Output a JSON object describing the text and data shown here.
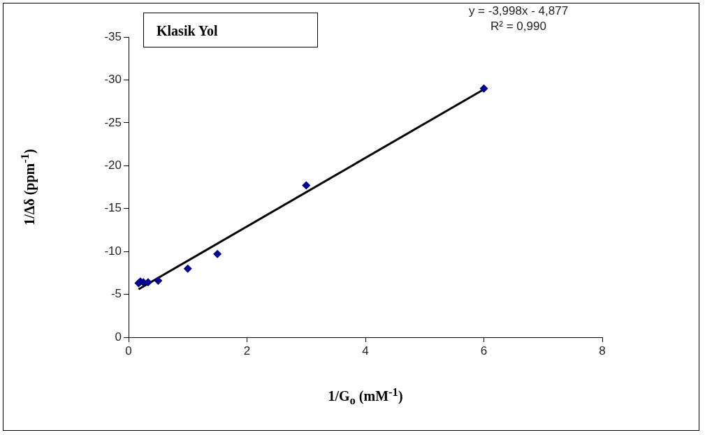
{
  "chart_data": {
    "type": "scatter",
    "xlabel": "1/G$_{o}$ (mM$^{-1}$)",
    "ylabel": "1/Δδ (ppm$^{-1}$)",
    "annotations": [
      "Klasik Yol",
      "y = -3,998x  - 4,877",
      "R² = 0,990"
    ],
    "series": [
      {
        "type": "scatter",
        "color": "#00008b",
        "marker": "diamond",
        "x": [
          0.17,
          0.2,
          0.25,
          0.33,
          0.5,
          1,
          1.5,
          3,
          6
        ],
        "values": [
          -6.3,
          -6.5,
          -6.4,
          -6.4,
          -6.6,
          -8.0,
          -9.7,
          -17.7,
          -29.0
        ]
      },
      {
        "type": "line",
        "color": "#000000",
        "marker": "none",
        "x": [
          0.17,
          6
        ],
        "values": [
          -5.6,
          -28.9
        ]
      }
    ],
    "xlim": [
      0,
      8
    ],
    "xticks": [
      0,
      2,
      4,
      6,
      8
    ],
    "ylim": [
      0,
      -35
    ],
    "yticks": [
      0,
      -5,
      -10,
      -15,
      -20,
      -25,
      -30,
      -35
    ],
    "grid": false,
    "legend": false
  }
}
